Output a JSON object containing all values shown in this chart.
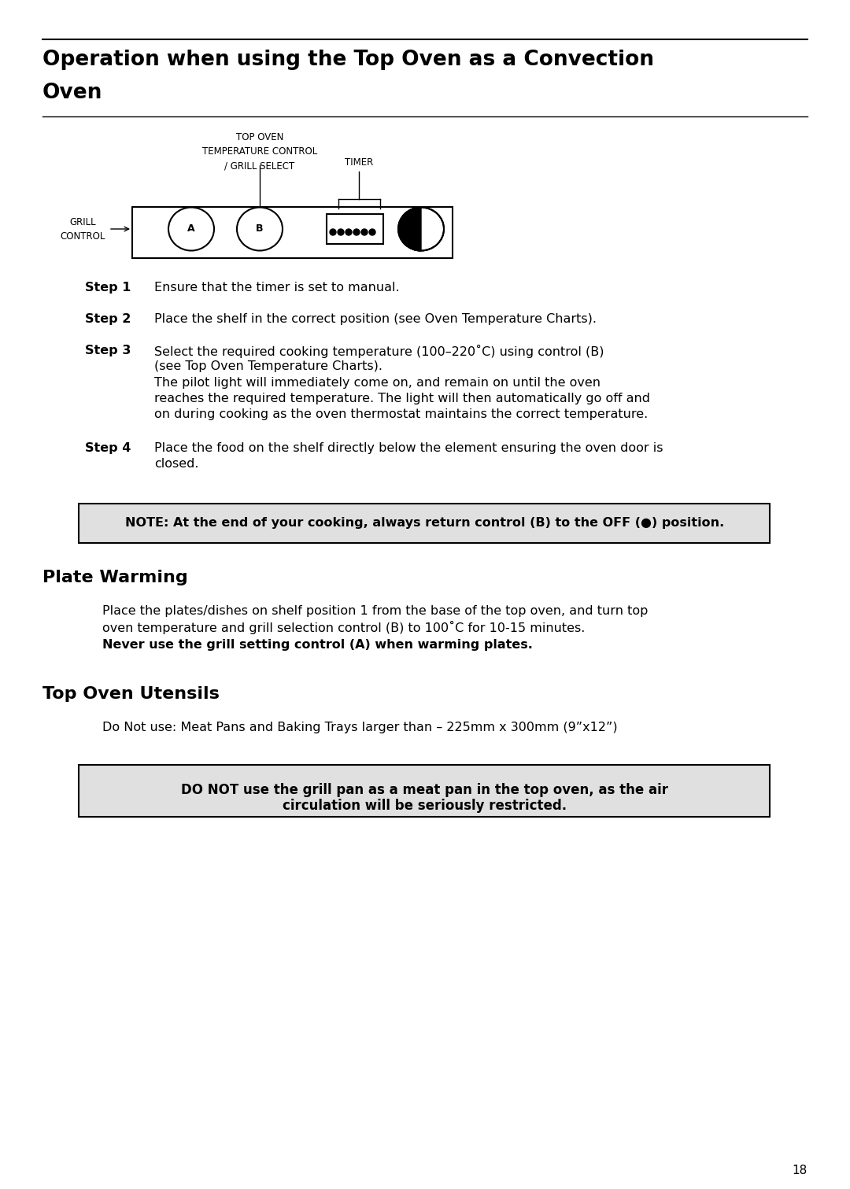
{
  "title_line1": "Operation when using the Top Oven as a Convection",
  "title_line2": "Oven",
  "bg_color": "#ffffff",
  "page_number": "18",
  "diagram": {
    "top_label": "TOP OVEN\nTEMPERATURE CONTROL\n/ GRILL SELECT",
    "timer_label": "TIMER",
    "grill_label": "GRILL\nCONTROL"
  },
  "step1_bold": "Step 1",
  "step1_text": "Ensure that the timer is set to manual.",
  "step2_bold": "Step 2",
  "step2_text": "Place the shelf in the correct position (see Oven Temperature Charts).",
  "step3_bold": "Step 3",
  "step3_text_l1": "Select the required cooking temperature (100–220˚C) using control (B)",
  "step3_text_l2": "(see Top Oven Temperature Charts).",
  "step3_text_l3": "The pilot light will immediately come on, and remain on until the oven",
  "step3_text_l4": "reaches the required temperature. The light will then automatically go off and",
  "step3_text_l5": "on during cooking as the oven thermostat maintains the correct temperature.",
  "step4_bold": "Step 4",
  "step4_text_l1": "Place the food on the shelf directly below the element ensuring the oven door is",
  "step4_text_l2": "closed.",
  "note_text": "NOTE: At the end of your cooking, always return control (B) to the OFF (●) position.",
  "note_bg": "#e0e0e0",
  "plate_heading": "Plate Warming",
  "plate_para1_l1": "Place the plates/dishes on shelf position 1 from the base of the top oven, and turn top",
  "plate_para1_l2": "oven temperature and grill selection control (B) to 100˚C for 10-15 minutes.",
  "plate_para2": "Never use the grill setting control (A) when warming plates.",
  "utensils_heading": "Top Oven Utensils",
  "utensils_para1": "Do Not use: Meat Pans and Baking Trays larger than – 225mm x 300mm (9”x12”)",
  "warn_text_l1": "DO NOT use the grill pan as a meat pan in the top oven, as the air",
  "warn_text_l2": "circulation will be seriously restricted.",
  "warn_bg": "#e0e0e0"
}
